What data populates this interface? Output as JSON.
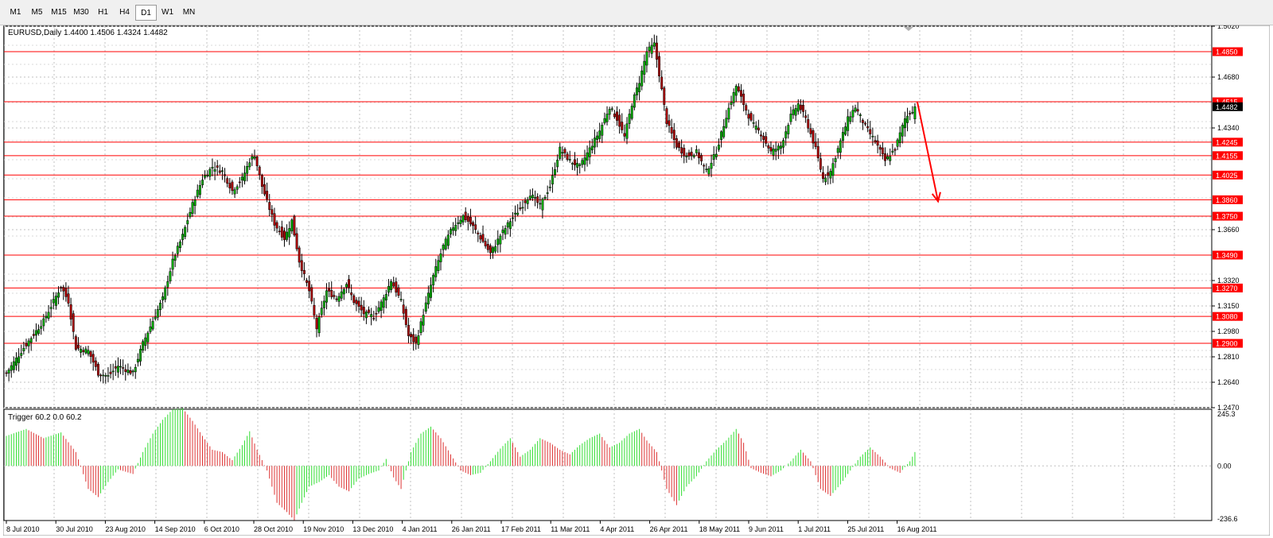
{
  "timeframes": [
    {
      "label": "M1",
      "active": false
    },
    {
      "label": "M5",
      "active": false
    },
    {
      "label": "M15",
      "active": false
    },
    {
      "label": "M30",
      "active": false
    },
    {
      "label": "H1",
      "active": false
    },
    {
      "label": "H4",
      "active": false
    },
    {
      "label": "D1",
      "active": true
    },
    {
      "label": "W1",
      "active": false
    },
    {
      "label": "MN",
      "active": false
    }
  ],
  "chart_title": "EURUSD,Daily  1.4400 1.4506 1.4324 1.4482",
  "indicator_title": "Trigger 60.2 0.0 60.2",
  "current_price": "1.4482",
  "colors": {
    "bull": "#00b000",
    "bear": "#b00000",
    "level": "#ff0000",
    "arrow": "#ff0000",
    "hist_pos": "#33dd33",
    "hist_neg": "#dd3333"
  },
  "chart_data": {
    "type": "candlestick",
    "price_axis": {
      "min": 1.247,
      "max": 1.502,
      "ticks": [
        "1.5020",
        "1.4680",
        "1.4340",
        "1.3660",
        "1.3320",
        "1.3150",
        "1.2980",
        "1.2810",
        "1.2640",
        "1.2470"
      ]
    },
    "levels": [
      1.485,
      1.4515,
      1.4245,
      1.4155,
      1.4025,
      1.386,
      1.375,
      1.349,
      1.327,
      1.308,
      1.29
    ],
    "x_labels": [
      "8 Jul 2010",
      "30 Jul 2010",
      "23 Aug 2010",
      "14 Sep 2010",
      "6 Oct 2010",
      "28 Oct 2010",
      "19 Nov 2010",
      "13 Dec 2010",
      "4 Jan 2011",
      "26 Jan 2011",
      "17 Feb 2011",
      "11 Mar 2011",
      "4 Apr 2011",
      "26 Apr 2011",
      "18 May 2011",
      "9 Jun 2011",
      "1 Jul 2011",
      "25 Jul 2011",
      "16 Aug 2011"
    ],
    "anchors": [
      [
        0,
        1.27
      ],
      [
        7,
        1.287
      ],
      [
        15,
        1.305
      ],
      [
        22,
        1.328
      ],
      [
        25,
        1.318
      ],
      [
        28,
        1.287
      ],
      [
        33,
        1.285
      ],
      [
        37,
        1.27
      ],
      [
        41,
        1.268
      ],
      [
        45,
        1.275
      ],
      [
        51,
        1.27
      ],
      [
        55,
        1.29
      ],
      [
        59,
        1.305
      ],
      [
        63,
        1.32
      ],
      [
        67,
        1.345
      ],
      [
        71,
        1.362
      ],
      [
        75,
        1.383
      ],
      [
        79,
        1.4
      ],
      [
        83,
        1.408
      ],
      [
        87,
        1.405
      ],
      [
        91,
        1.392
      ],
      [
        95,
        1.4
      ],
      [
        98,
        1.412
      ],
      [
        100,
        1.416
      ],
      [
        103,
        1.395
      ],
      [
        108,
        1.37
      ],
      [
        112,
        1.36
      ],
      [
        115,
        1.372
      ],
      [
        118,
        1.345
      ],
      [
        122,
        1.325
      ],
      [
        125,
        1.3
      ],
      [
        129,
        1.325
      ],
      [
        133,
        1.32
      ],
      [
        137,
        1.33
      ],
      [
        140,
        1.318
      ],
      [
        144,
        1.31
      ],
      [
        148,
        1.308
      ],
      [
        152,
        1.32
      ],
      [
        155,
        1.332
      ],
      [
        159,
        1.318
      ],
      [
        162,
        1.295
      ],
      [
        165,
        1.29
      ],
      [
        168,
        1.31
      ],
      [
        172,
        1.335
      ],
      [
        176,
        1.355
      ],
      [
        180,
        1.368
      ],
      [
        184,
        1.375
      ],
      [
        188,
        1.368
      ],
      [
        192,
        1.358
      ],
      [
        195,
        1.35
      ],
      [
        199,
        1.362
      ],
      [
        203,
        1.372
      ],
      [
        207,
        1.38
      ],
      [
        211,
        1.39
      ],
      [
        215,
        1.382
      ],
      [
        219,
        1.395
      ],
      [
        223,
        1.42
      ],
      [
        227,
        1.412
      ],
      [
        231,
        1.408
      ],
      [
        235,
        1.42
      ],
      [
        239,
        1.432
      ],
      [
        243,
        1.448
      ],
      [
        246,
        1.44
      ],
      [
        249,
        1.428
      ],
      [
        252,
        1.45
      ],
      [
        255,
        1.465
      ],
      [
        258,
        1.485
      ],
      [
        261,
        1.49
      ],
      [
        263,
        1.47
      ],
      [
        266,
        1.438
      ],
      [
        270,
        1.422
      ],
      [
        274,
        1.415
      ],
      [
        278,
        1.418
      ],
      [
        282,
        1.405
      ],
      [
        286,
        1.418
      ],
      [
        290,
        1.442
      ],
      [
        294,
        1.462
      ],
      [
        297,
        1.45
      ],
      [
        300,
        1.438
      ],
      [
        304,
        1.43
      ],
      [
        308,
        1.418
      ],
      [
        312,
        1.422
      ],
      [
        316,
        1.442
      ],
      [
        319,
        1.45
      ],
      [
        322,
        1.44
      ],
      [
        326,
        1.42
      ],
      [
        329,
        1.4
      ],
      [
        332,
        1.405
      ],
      [
        335,
        1.42
      ],
      [
        339,
        1.44
      ],
      [
        342,
        1.448
      ],
      [
        346,
        1.435
      ],
      [
        350,
        1.425
      ],
      [
        354,
        1.412
      ],
      [
        358,
        1.42
      ],
      [
        362,
        1.44
      ],
      [
        366,
        1.448
      ]
    ],
    "indicator": {
      "name": "Trigger",
      "range": {
        "min": -236.6,
        "max": 245.3
      },
      "ticks": [
        "245.3",
        "0.00",
        "-236.6"
      ],
      "anchors": [
        [
          0,
          130
        ],
        [
          8,
          160
        ],
        [
          15,
          120
        ],
        [
          22,
          145
        ],
        [
          28,
          60
        ],
        [
          33,
          -100
        ],
        [
          37,
          -135
        ],
        [
          41,
          -70
        ],
        [
          45,
          -15
        ],
        [
          51,
          -35
        ],
        [
          55,
          60
        ],
        [
          59,
          140
        ],
        [
          63,
          200
        ],
        [
          67,
          245
        ],
        [
          71,
          250
        ],
        [
          75,
          195
        ],
        [
          79,
          130
        ],
        [
          83,
          70
        ],
        [
          87,
          60
        ],
        [
          91,
          25
        ],
        [
          95,
          90
        ],
        [
          98,
          150
        ],
        [
          101,
          70
        ],
        [
          105,
          -20
        ],
        [
          109,
          -160
        ],
        [
          113,
          -200
        ],
        [
          116,
          -235
        ],
        [
          119,
          -160
        ],
        [
          122,
          -90
        ],
        [
          126,
          -70
        ],
        [
          130,
          -40
        ],
        [
          134,
          -90
        ],
        [
          138,
          -110
        ],
        [
          142,
          -55
        ],
        [
          146,
          -35
        ],
        [
          150,
          -20
        ],
        [
          153,
          30
        ],
        [
          156,
          -50
        ],
        [
          159,
          -100
        ],
        [
          163,
          60
        ],
        [
          167,
          140
        ],
        [
          171,
          170
        ],
        [
          175,
          120
        ],
        [
          179,
          50
        ],
        [
          183,
          -20
        ],
        [
          187,
          -40
        ],
        [
          191,
          -30
        ],
        [
          195,
          20
        ],
        [
          199,
          75
        ],
        [
          203,
          120
        ],
        [
          207,
          40
        ],
        [
          211,
          70
        ],
        [
          215,
          120
        ],
        [
          219,
          100
        ],
        [
          223,
          70
        ],
        [
          227,
          50
        ],
        [
          231,
          90
        ],
        [
          235,
          120
        ],
        [
          239,
          140
        ],
        [
          243,
          80
        ],
        [
          247,
          100
        ],
        [
          251,
          140
        ],
        [
          255,
          160
        ],
        [
          258,
          110
        ],
        [
          262,
          60
        ],
        [
          266,
          -100
        ],
        [
          270,
          -170
        ],
        [
          274,
          -90
        ],
        [
          278,
          -45
        ],
        [
          282,
          20
        ],
        [
          286,
          70
        ],
        [
          290,
          110
        ],
        [
          294,
          160
        ],
        [
          297,
          100
        ],
        [
          300,
          -10
        ],
        [
          304,
          -30
        ],
        [
          308,
          -45
        ],
        [
          312,
          -20
        ],
        [
          316,
          20
        ],
        [
          320,
          70
        ],
        [
          324,
          20
        ],
        [
          328,
          -100
        ],
        [
          332,
          -130
        ],
        [
          336,
          -80
        ],
        [
          340,
          -20
        ],
        [
          344,
          40
        ],
        [
          348,
          80
        ],
        [
          352,
          40
        ],
        [
          356,
          -10
        ],
        [
          360,
          -30
        ],
        [
          364,
          20
        ],
        [
          366,
          60
        ]
      ]
    }
  }
}
